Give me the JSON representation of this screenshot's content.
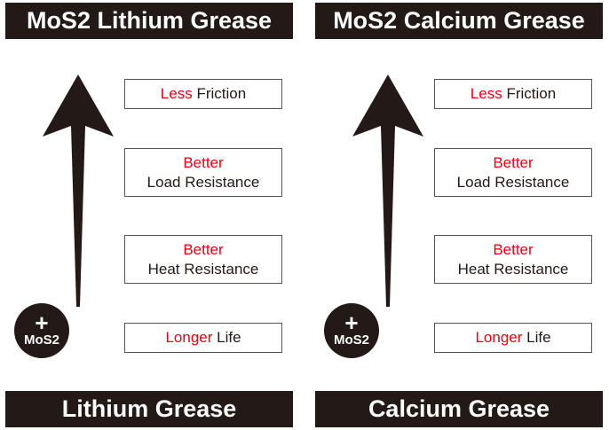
{
  "colors": {
    "dark": "#231916",
    "highlight": "#e60012",
    "text": "#231916"
  },
  "panels": [
    {
      "title": "MoS2 Lithium Grease",
      "footer": "Lithium Grease",
      "badge": {
        "plus": "+",
        "label": "MoS2"
      },
      "benefits": {
        "friction": {
          "hl": "Less",
          "rest": "Friction"
        },
        "load": {
          "hl": "Better",
          "rest": "Load Resistance"
        },
        "heat": {
          "hl": "Better",
          "rest": "Heat Resistance"
        },
        "life": {
          "hl": "Longer",
          "rest": "Life"
        }
      }
    },
    {
      "title": "MoS2 Calcium Grease",
      "footer": "Calcium Grease",
      "badge": {
        "plus": "+",
        "label": "MoS2"
      },
      "benefits": {
        "friction": {
          "hl": "Less",
          "rest": "Friction"
        },
        "load": {
          "hl": "Better",
          "rest": "Load Resistance"
        },
        "heat": {
          "hl": "Better",
          "rest": "Heat Resistance"
        },
        "life": {
          "hl": "Longer",
          "rest": "Life"
        }
      }
    }
  ]
}
